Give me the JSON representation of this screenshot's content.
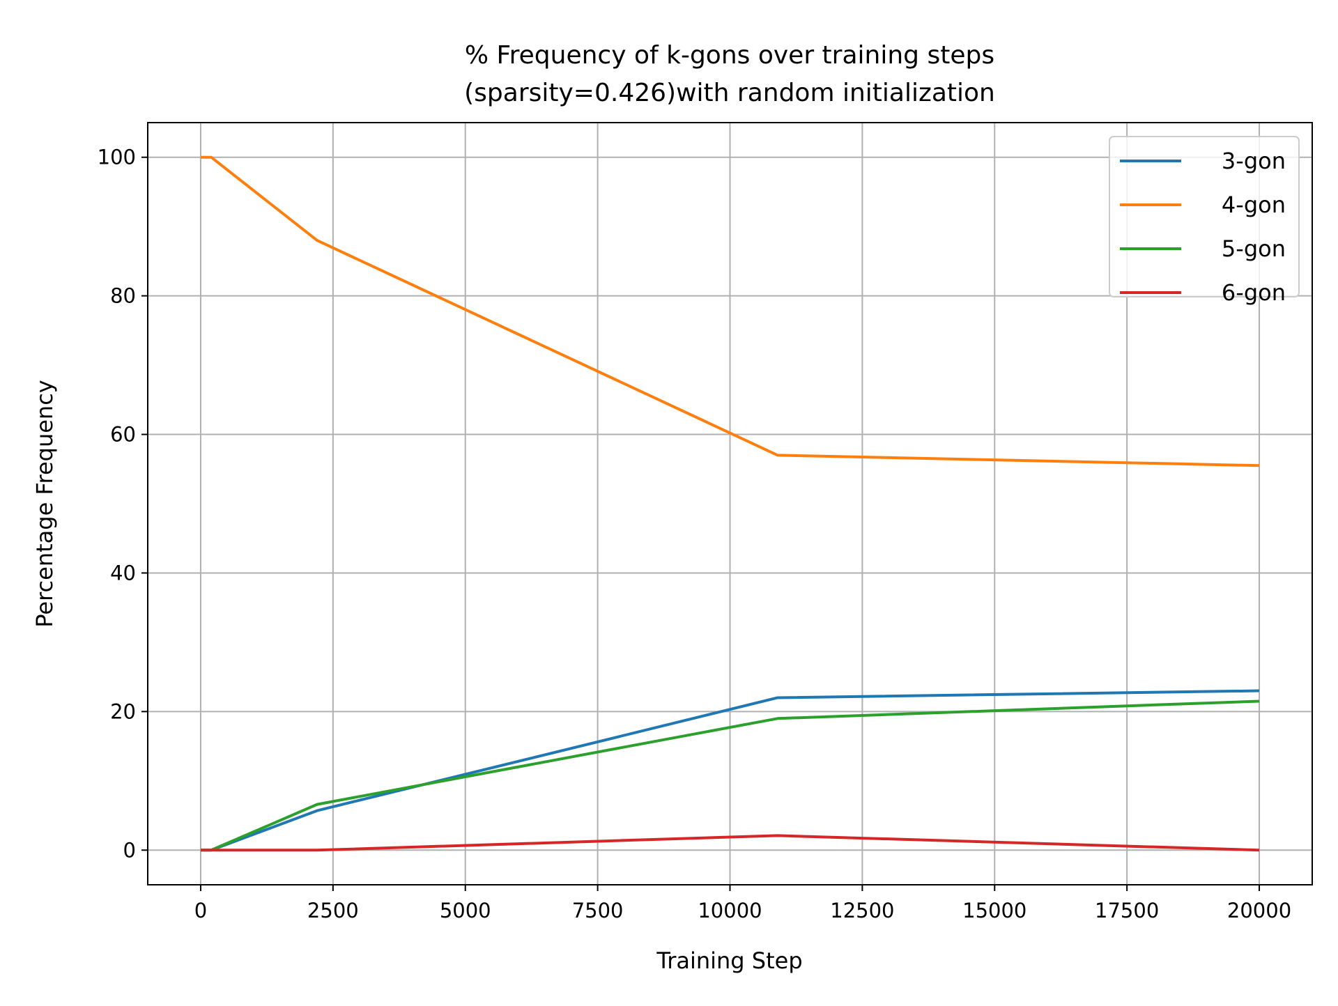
{
  "chart_data": {
    "type": "line",
    "title": "% Frequency of k-gons over training steps",
    "subtitle": "(sparsity=0.426)with random initialization",
    "xlabel": "Training Step",
    "ylabel": "Percentage Frequency",
    "xlim": [
      -1000,
      21000
    ],
    "ylim": [
      -5,
      105
    ],
    "xticks": [
      0,
      2500,
      5000,
      7500,
      10000,
      12500,
      15000,
      17500,
      20000
    ],
    "xtick_labels": [
      "0",
      "2500",
      "5000",
      "7500",
      "10000",
      "12500",
      "15000",
      "17500",
      "20000"
    ],
    "yticks": [
      0,
      20,
      40,
      60,
      80,
      100
    ],
    "ytick_labels": [
      "0",
      "20",
      "40",
      "60",
      "80",
      "100"
    ],
    "grid": true,
    "legend_position": "top-right",
    "series": [
      {
        "name": "3-gon",
        "color": "#1f77b4",
        "x": [
          0,
          200,
          2200,
          10900,
          20000
        ],
        "y": [
          0,
          0,
          5.7,
          22,
          23
        ]
      },
      {
        "name": "4-gon",
        "color": "#ff7f0e",
        "x": [
          0,
          200,
          2200,
          10900,
          20000
        ],
        "y": [
          100,
          100,
          88,
          57,
          55.5
        ]
      },
      {
        "name": "5-gon",
        "color": "#2ca02c",
        "x": [
          0,
          200,
          2200,
          10900,
          20000
        ],
        "y": [
          0,
          0,
          6.6,
          19,
          21.5
        ]
      },
      {
        "name": "6-gon",
        "color": "#d62728",
        "x": [
          0,
          200,
          2200,
          10900,
          20000
        ],
        "y": [
          0,
          0,
          0,
          2.1,
          0
        ]
      }
    ]
  }
}
